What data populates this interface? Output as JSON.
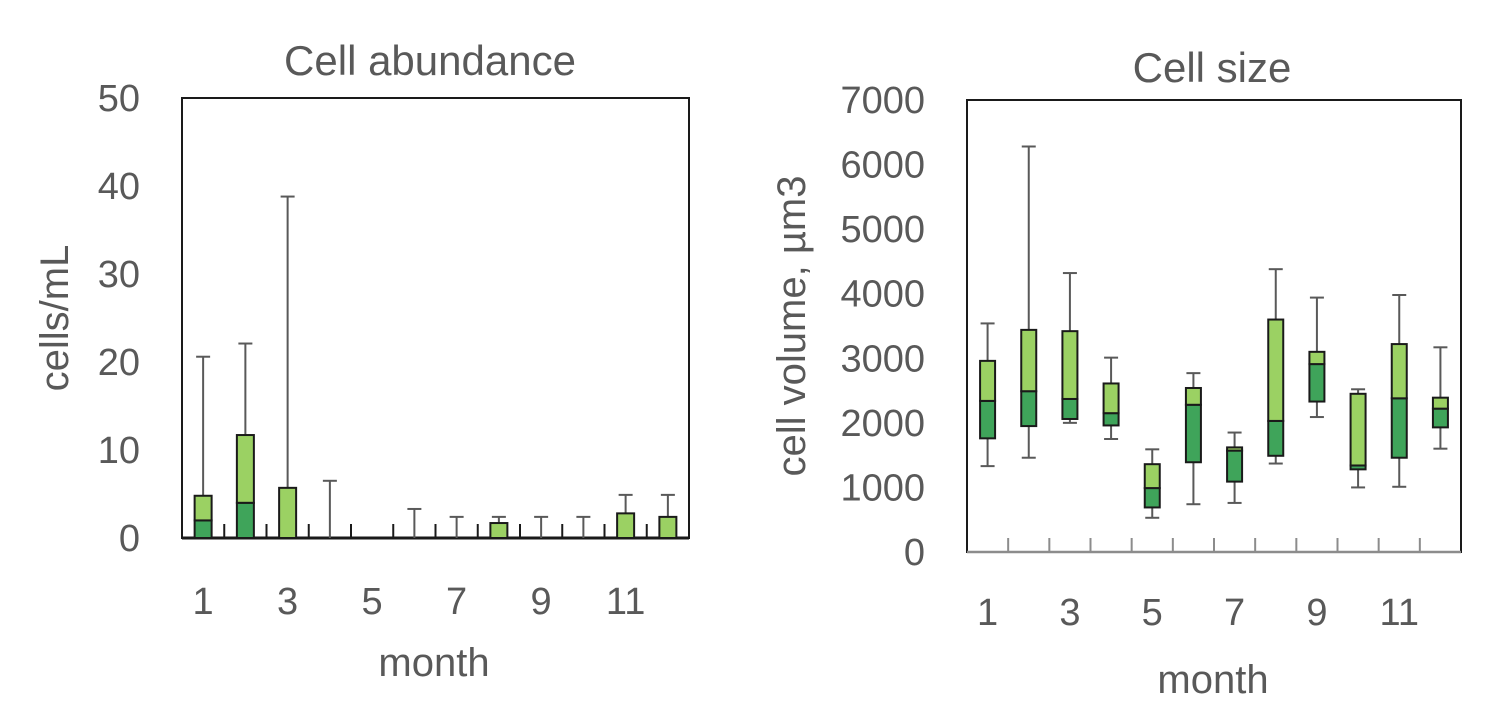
{
  "colors": {
    "upper_box": "#9bd163",
    "lower_box": "#3fa45a",
    "box_edge": "#1a1a1a",
    "whisker": "#595959",
    "text": "#595959"
  },
  "chart_data": [
    {
      "type": "box",
      "title": "Cell abundance",
      "xlabel": "month",
      "ylabel": "cells/mL",
      "ylim": [
        0,
        50
      ],
      "yticks": [
        "0",
        "10",
        "20",
        "30",
        "40",
        "50"
      ],
      "xticks": [
        "1",
        "3",
        "5",
        "7",
        "9",
        "11"
      ],
      "months": [
        1,
        2,
        3,
        4,
        5,
        6,
        7,
        8,
        9,
        10,
        11,
        12
      ],
      "q1": [
        0,
        0,
        0,
        0,
        0,
        0,
        0,
        0,
        0,
        0,
        0,
        0
      ],
      "median": [
        2.0,
        4.0,
        0,
        0,
        0,
        0,
        0,
        0,
        0,
        0,
        0,
        0
      ],
      "q3": [
        4.8,
        11.7,
        5.7,
        0,
        0,
        0,
        0,
        1.7,
        0,
        0,
        2.8,
        2.4
      ],
      "max": [
        20.6,
        22.1,
        38.8,
        6.5,
        0,
        3.3,
        2.4,
        2.4,
        2.4,
        2.4,
        4.9,
        4.9
      ],
      "min": [
        0,
        0,
        0,
        0,
        0,
        0,
        0,
        0,
        0,
        0,
        0,
        0
      ]
    },
    {
      "type": "box",
      "title": "Cell size",
      "xlabel": "month",
      "ylabel": "cell volume, µm3",
      "ylim": [
        0,
        7000
      ],
      "yticks": [
        "0",
        "1000",
        "2000",
        "3000",
        "4000",
        "5000",
        "6000",
        "7000"
      ],
      "xticks": [
        "1",
        "3",
        "5",
        "7",
        "9",
        "11"
      ],
      "months": [
        1,
        2,
        3,
        4,
        5,
        6,
        7,
        8,
        9,
        10,
        11,
        12
      ],
      "min": [
        1330,
        1460,
        2000,
        1750,
        530,
        740,
        760,
        1370,
        2090,
        1000,
        1010,
        1600
      ],
      "q1": [
        1760,
        1950,
        2060,
        1960,
        690,
        1390,
        1090,
        1490,
        2330,
        1280,
        1460,
        1930
      ],
      "median": [
        2340,
        2490,
        2370,
        2150,
        990,
        2280,
        1570,
        2030,
        2910,
        1340,
        2380,
        2220
      ],
      "q3": [
        2960,
        3440,
        3420,
        2610,
        1360,
        2540,
        1620,
        3600,
        3100,
        2450,
        3220,
        2390
      ],
      "max": [
        3540,
        6280,
        4320,
        3010,
        1590,
        2770,
        1850,
        4380,
        3940,
        2520,
        3980,
        3170
      ]
    }
  ]
}
